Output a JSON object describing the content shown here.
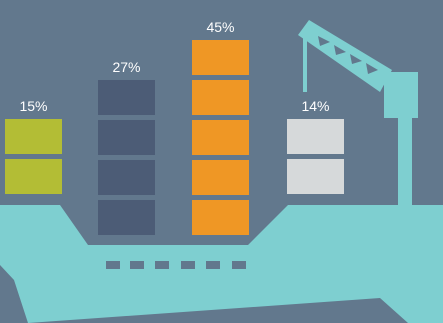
{
  "background_color": "#62788d",
  "ship_color": "#7ecfd0",
  "chart_data": {
    "type": "bar",
    "unit": "%",
    "series": [
      {
        "label": "15%",
        "value": 15,
        "blocks": 2,
        "color": "#b3bd35"
      },
      {
        "label": "27%",
        "value": 27,
        "blocks": 4,
        "color": "#4c5c76"
      },
      {
        "label": "45%",
        "value": 45,
        "blocks": 5,
        "color": "#ef9725"
      },
      {
        "label": "14%",
        "value": 14,
        "blocks": 2,
        "color": "#d6d9da"
      }
    ]
  },
  "icons": [
    "cargo-ship-icon",
    "crane-icon"
  ]
}
